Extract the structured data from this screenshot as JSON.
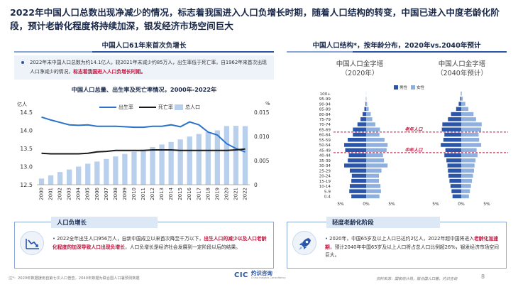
{
  "title": "2022年中国人口总数出现净减少的情况，标志着我国进入人口负增长时期，随着人口结构的转变，中国已进入中度老龄化阶段，预计老龄化程度将持续加深，银发经济市场空间巨大",
  "left_section": {
    "header": "中国人口61年来首次负增长",
    "note_plain": "2022年末中国人口总数为约14.1亿人，较2021年末减少约85万人，出生率低于死亡率，自1962年来首次出现人口净减少的情况，",
    "note_red": "标志着我国进入人口负增长时期。",
    "chart_title": "中国人口总量、出生率及死亡率情况，2000年-2022年",
    "unit_left": "亿人",
    "unit_right": "%",
    "legend": {
      "birth": "出生率",
      "death": "死亡率",
      "pop": "总人口"
    },
    "colors": {
      "birth": "#2a73c8",
      "death": "#1a1a1a",
      "pop": "#b9d0ec"
    }
  },
  "right_section": {
    "header": "中国人口结构*，按年龄分布，2020年vs.2040年预计",
    "pyramid_2020": "中国人口金字塔\n（2020年）",
    "pyramid_2020_l1": "中国人口金字塔",
    "pyramid_2020_l2": "（2020年）",
    "pyramid_2040_l1": "中国人口金字塔",
    "pyramid_2040_l2": "（2040年预计）",
    "legend_male": "男性",
    "legend_female": "女性",
    "label_elderly": "老年人口",
    "label_middle": "中年人口",
    "colors": {
      "male": "#2a55a8",
      "female": "#8fb0de",
      "marker": "#c0143c"
    }
  },
  "chart_data": [
    {
      "type": "bar",
      "title": "中国人口总量、出生率及死亡率情况，2000年-2022年",
      "categories": [
        "2000",
        "2001",
        "2002",
        "2003",
        "2004",
        "2005",
        "2006",
        "2007",
        "2008",
        "2009",
        "2010",
        "2011",
        "2012",
        "2013",
        "2014",
        "2015",
        "2016",
        "2017",
        "2018",
        "2019",
        "2020",
        "2021",
        "2022"
      ],
      "ylim_left": [
        12.5,
        14.5
      ],
      "yticks_left": [
        "14.5",
        "14.0",
        "13.5",
        "13.0",
        "12.5"
      ],
      "ylim_right": [
        0,
        0.015
      ],
      "yticks_right": [
        "0.015",
        "0.010",
        "0.005",
        "0"
      ],
      "series": [
        {
          "name": "总人口",
          "axis": "left",
          "kind": "bar",
          "values": [
            12.67,
            12.76,
            12.85,
            12.92,
            13.0,
            13.08,
            13.14,
            13.21,
            13.28,
            13.35,
            13.41,
            13.47,
            13.54,
            13.61,
            13.68,
            13.75,
            13.83,
            13.9,
            13.95,
            14.0,
            14.12,
            14.126,
            14.118
          ]
        },
        {
          "name": "出生率",
          "axis": "right",
          "kind": "line",
          "values": [
            0.014,
            0.0134,
            0.0129,
            0.0124,
            0.0123,
            0.0124,
            0.0121,
            0.0121,
            0.0121,
            0.012,
            0.0119,
            0.0119,
            0.0121,
            0.0121,
            0.0124,
            0.012,
            0.013,
            0.0124,
            0.0109,
            0.0103,
            0.0085,
            0.0075,
            0.0068
          ]
        },
        {
          "name": "死亡率",
          "axis": "right",
          "kind": "line",
          "values": [
            0.0065,
            0.0064,
            0.0064,
            0.0064,
            0.0064,
            0.0065,
            0.0068,
            0.0069,
            0.0071,
            0.0071,
            0.0071,
            0.0071,
            0.0072,
            0.0072,
            0.0072,
            0.0071,
            0.0071,
            0.0071,
            0.0071,
            0.0071,
            0.0071,
            0.0072,
            0.0074
          ]
        }
      ]
    },
    {
      "type": "bar",
      "title": "中国人口金字塔（2020年）",
      "categories": [
        "0-4",
        "5-9",
        "10-14",
        "15-19",
        "20-24",
        "25-29",
        "30-34",
        "35-39",
        "40-44",
        "45-49",
        "50-54",
        "55-59",
        "60-64",
        "65-69",
        "70-74",
        "75-79",
        "80-84",
        "85-89",
        "90-94",
        "95-99",
        "100+"
      ],
      "xticks": [
        "5%",
        "0%",
        "5%"
      ],
      "series": [
        {
          "name": "男性",
          "values": [
            2.9,
            3.3,
            3.2,
            2.9,
            2.8,
            3.2,
            4.3,
            3.6,
            3.4,
            4.1,
            4.3,
            3.6,
            2.6,
            2.6,
            1.7,
            1.1,
            0.7,
            0.35,
            0.12,
            0.03,
            0.01
          ]
        },
        {
          "name": "女性",
          "values": [
            2.6,
            2.9,
            2.8,
            2.5,
            2.5,
            3.0,
            4.2,
            3.5,
            3.3,
            4.0,
            4.2,
            3.6,
            2.6,
            2.7,
            1.8,
            1.2,
            0.9,
            0.5,
            0.2,
            0.05,
            0.01
          ]
        }
      ]
    },
    {
      "type": "bar",
      "title": "中国人口金字塔（2040年预计）",
      "categories": [
        "0-4",
        "5-9",
        "10-14",
        "15-19",
        "20-24",
        "25-29",
        "30-34",
        "35-39",
        "40-44",
        "45-49",
        "50-54",
        "55-59",
        "60-64",
        "65-69",
        "70-74",
        "75-79",
        "80-84",
        "85-89",
        "90-94",
        "95-99",
        "100+"
      ],
      "xticks": [
        "5%",
        "0%",
        "5%"
      ],
      "series": [
        {
          "name": "男性",
          "values": [
            1.7,
            1.9,
            2.1,
            2.3,
            2.5,
            2.6,
            2.7,
            2.9,
            3.3,
            3.1,
            4.0,
            3.5,
            3.3,
            3.8,
            3.7,
            2.6,
            2.0,
            1.0,
            0.5,
            0.2,
            0.05
          ]
        },
        {
          "name": "女性",
          "values": [
            1.5,
            1.7,
            1.9,
            2.1,
            2.3,
            2.5,
            2.6,
            2.8,
            3.2,
            3.0,
            3.9,
            3.5,
            3.4,
            3.9,
            4.0,
            2.9,
            2.4,
            1.4,
            0.8,
            0.3,
            0.1
          ]
        }
      ]
    }
  ],
  "card_left": {
    "tab": "人口负增长",
    "plain1": "2022全年出生人口956万人，自新中国成立以来首次降至千万以下，",
    "red": "出生人口的减少以及人口老龄化程度的加深导致人口出现负增长",
    "plain2": "，人口负增长是经济社会发展到一定阶段以后的结果。"
  },
  "card_right": {
    "tab": "轻度老龄化阶段",
    "plain1": "2020年，中国65岁及以上人口已达约2亿人，2022年超中国将进入",
    "red": "老龄化加速期",
    "plain2": "，预计2040年中国65岁及以上人口将占总人口比例超26%，银发经济市场空间巨大。"
  },
  "footnote": "注*：2020年数据援用自第七次人口普查，2040年数据为联合国人口署预测数据",
  "source": "资料来源：国家统计局，联合国人口署，灼识咨询",
  "logo": {
    "mark": "CIC",
    "name": "灼识咨询",
    "sub": "China Insights Consultancy"
  },
  "page": "8"
}
